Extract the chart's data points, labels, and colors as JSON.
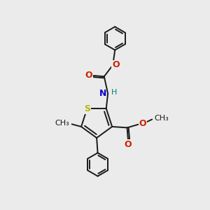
{
  "bg_color": "#ebebeb",
  "bond_color": "#1a1a1a",
  "s_color": "#b8b800",
  "n_color": "#0000cc",
  "o_color": "#cc2200",
  "line_width": 1.4,
  "figsize": [
    3.0,
    3.0
  ],
  "dpi": 100,
  "xlim": [
    0,
    10
  ],
  "ylim": [
    0,
    10
  ]
}
